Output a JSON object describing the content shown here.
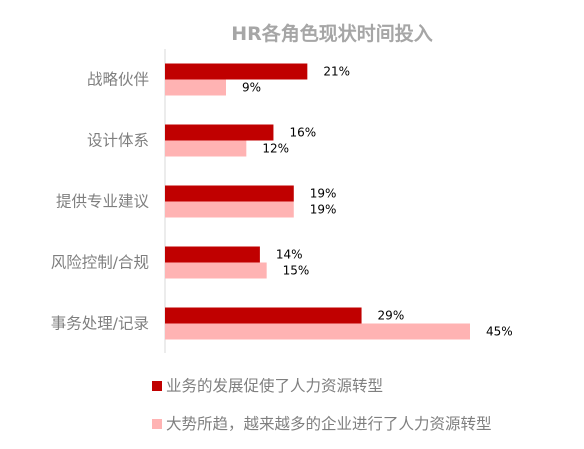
{
  "chart_data": {
    "type": "bar",
    "orientation": "horizontal",
    "title": "HR各角色现状时间投入",
    "categories": [
      "战略伙伴",
      "设计体系",
      "提供专业建议",
      "风险控制/合规",
      "事务处理/记录"
    ],
    "series": [
      {
        "name": "业务的发展促使了人力资源转型",
        "color": "#c00000",
        "values": [
          21,
          16,
          19,
          14,
          29
        ],
        "labels": [
          "21%",
          "16%",
          "19%",
          "14%",
          "29%"
        ]
      },
      {
        "name": "大势所趋，越来越多的企业进行了人力资源转型",
        "color": "#ffb3b3",
        "values": [
          9,
          12,
          19,
          15,
          45
        ],
        "labels": [
          "9%",
          "12%",
          "19%",
          "15%",
          "45%"
        ]
      }
    ],
    "unit": "%",
    "xlim": [
      0,
      45
    ],
    "grid": false,
    "legend_position": "bottom"
  }
}
